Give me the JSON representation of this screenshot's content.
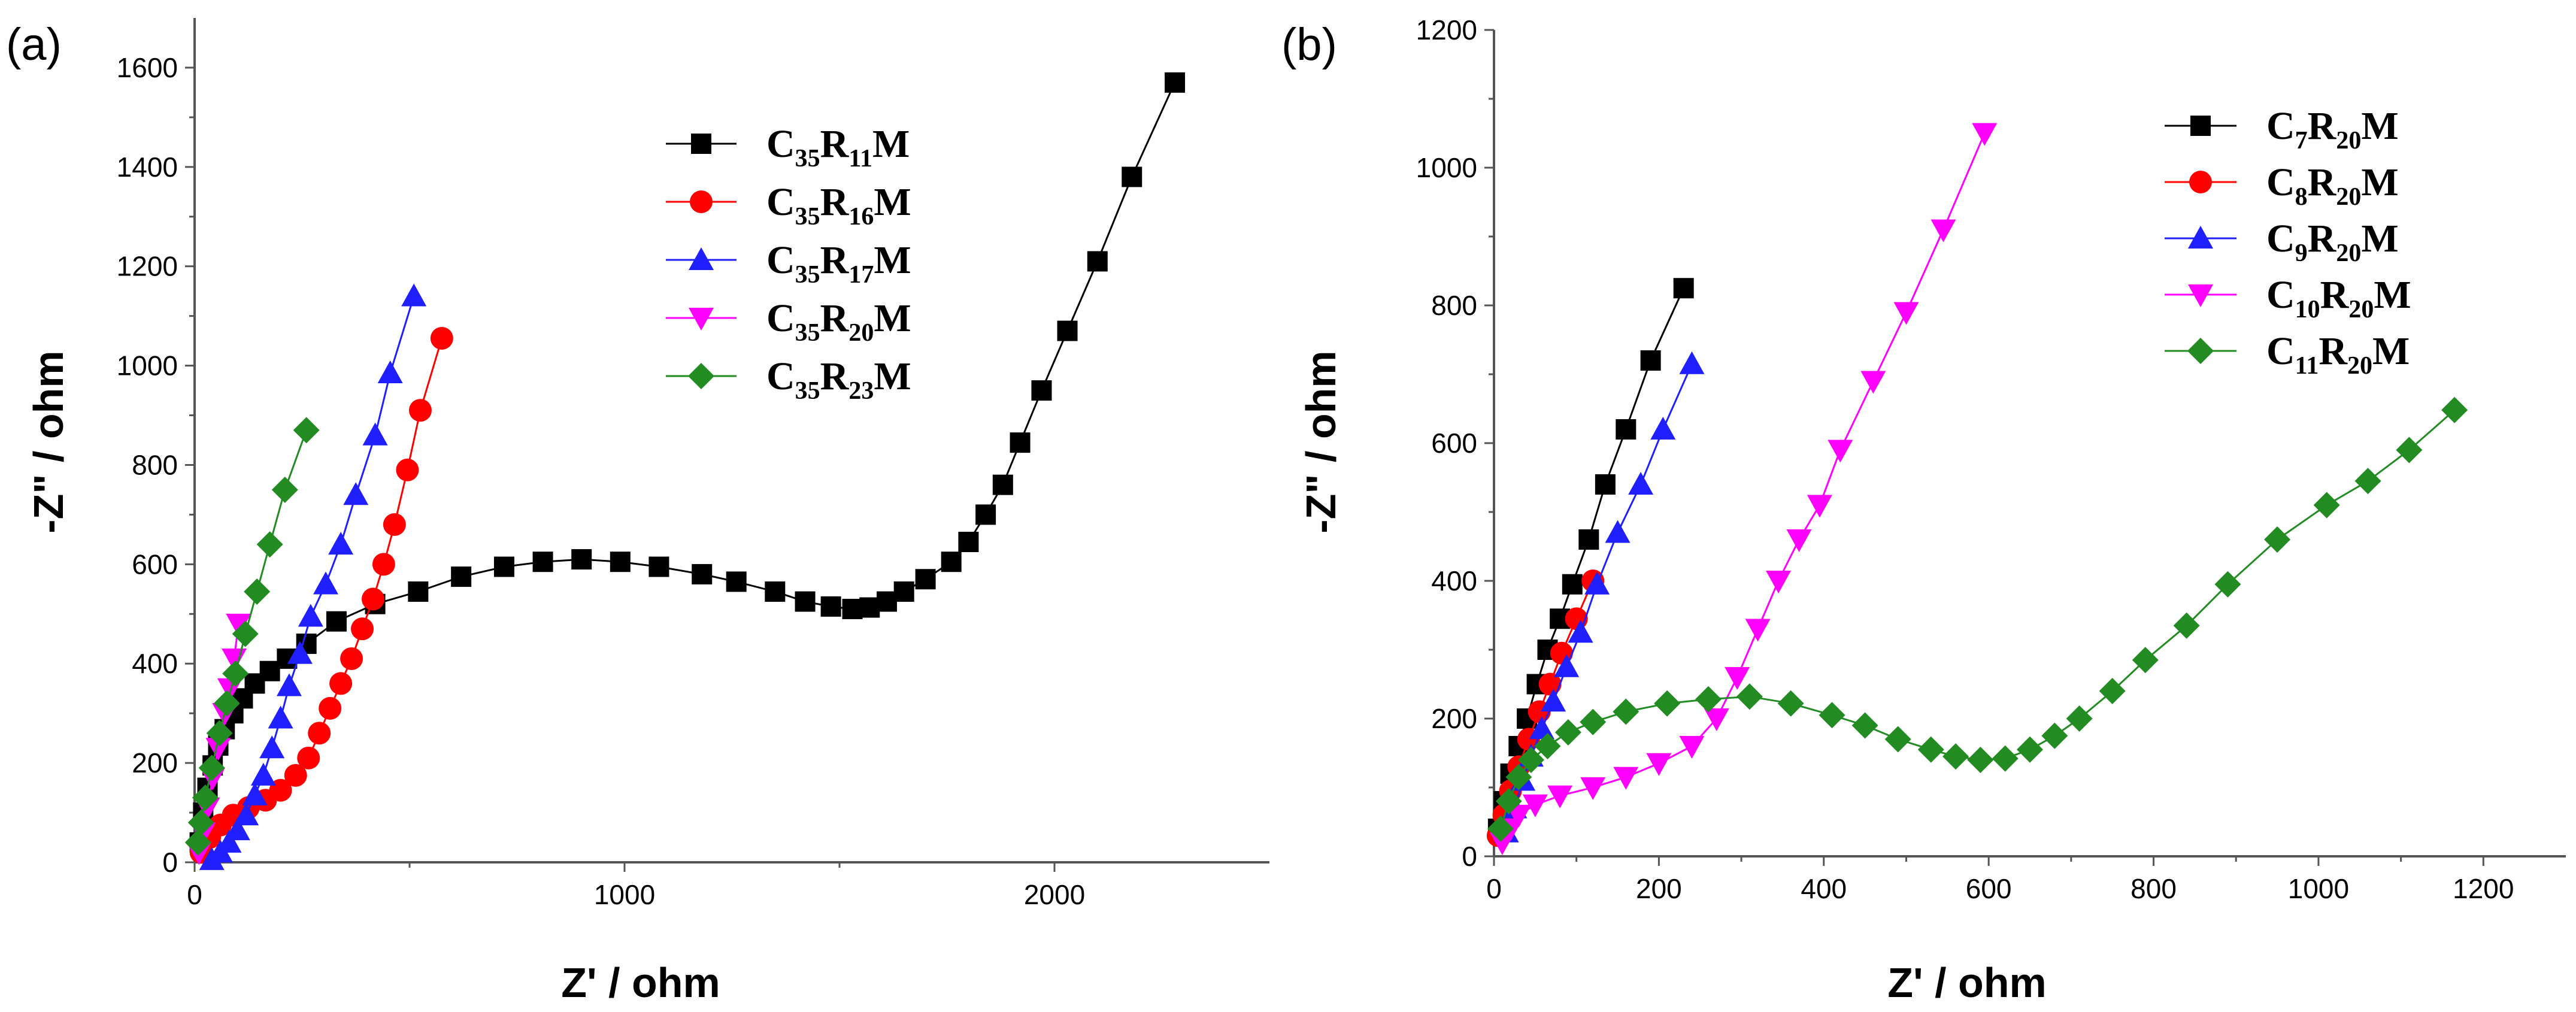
{
  "chart_data": [
    {
      "panel_label": "(a)",
      "type": "scatter",
      "xlabel": "Z' / ohm",
      "ylabel": "-Z\" / ohm",
      "xlim": [
        0,
        2500
      ],
      "ylim": [
        0,
        1700
      ],
      "xticks": [
        0,
        1000,
        2000
      ],
      "yticks": [
        0,
        200,
        400,
        600,
        800,
        1000,
        1200,
        1400,
        1600
      ],
      "legend_position": "top-right",
      "series": [
        {
          "name": "C35R11M",
          "legend": {
            "p1": "C",
            "s1": "35",
            "p2": "R",
            "s2": "11",
            "p3": "M"
          },
          "color": "#000000",
          "marker": "square",
          "points": [
            [
              12,
              40
            ],
            [
              20,
              100
            ],
            [
              30,
              150
            ],
            [
              42,
              195
            ],
            [
              55,
              235
            ],
            [
              70,
              268
            ],
            [
              90,
              300
            ],
            [
              112,
              330
            ],
            [
              140,
              360
            ],
            [
              175,
              385
            ],
            [
              215,
              410
            ],
            [
              260,
              440
            ],
            [
              330,
              485
            ],
            [
              420,
              520
            ],
            [
              520,
              545
            ],
            [
              620,
              575
            ],
            [
              720,
              595
            ],
            [
              810,
              605
            ],
            [
              900,
              610
            ],
            [
              990,
              605
            ],
            [
              1080,
              595
            ],
            [
              1180,
              580
            ],
            [
              1260,
              565
            ],
            [
              1350,
              545
            ],
            [
              1420,
              525
            ],
            [
              1480,
              515
            ],
            [
              1530,
              510
            ],
            [
              1570,
              513
            ],
            [
              1610,
              525
            ],
            [
              1650,
              545
            ],
            [
              1700,
              570
            ],
            [
              1760,
              605
            ],
            [
              1800,
              645
            ],
            [
              1840,
              700
            ],
            [
              1880,
              760
            ],
            [
              1920,
              845
            ],
            [
              1970,
              950
            ],
            [
              2030,
              1070
            ],
            [
              2100,
              1210
            ],
            [
              2180,
              1380
            ],
            [
              2280,
              1570
            ]
          ]
        },
        {
          "name": "C35R16M",
          "legend": {
            "p1": "C",
            "s1": "35",
            "p2": "R",
            "s2": "16",
            "p3": "M"
          },
          "color": "#ff0000",
          "marker": "circle",
          "points": [
            [
              15,
              20
            ],
            [
              35,
              50
            ],
            [
              60,
              75
            ],
            [
              90,
              95
            ],
            [
              125,
              110
            ],
            [
              165,
              125
            ],
            [
              200,
              145
            ],
            [
              235,
              175
            ],
            [
              265,
              210
            ],
            [
              290,
              260
            ],
            [
              315,
              310
            ],
            [
              340,
              360
            ],
            [
              365,
              410
            ],
            [
              390,
              470
            ],
            [
              415,
              530
            ],
            [
              440,
              600
            ],
            [
              465,
              680
            ],
            [
              495,
              790
            ],
            [
              525,
              910
            ],
            [
              575,
              1055
            ]
          ]
        },
        {
          "name": "C35R17M",
          "legend": {
            "p1": "C",
            "s1": "35",
            "p2": "R",
            "s2": "17",
            "p3": "M"
          },
          "color": "#1f1fff",
          "marker": "triangle-up",
          "points": [
            [
              40,
              5
            ],
            [
              60,
              20
            ],
            [
              80,
              40
            ],
            [
              100,
              65
            ],
            [
              120,
              95
            ],
            [
              140,
              135
            ],
            [
              160,
              175
            ],
            [
              180,
              230
            ],
            [
              200,
              290
            ],
            [
              220,
              355
            ],
            [
              245,
              420
            ],
            [
              270,
              495
            ],
            [
              305,
              560
            ],
            [
              340,
              640
            ],
            [
              375,
              740
            ],
            [
              420,
              860
            ],
            [
              455,
              985
            ],
            [
              510,
              1140
            ]
          ]
        },
        {
          "name": "C35R20M",
          "legend": {
            "p1": "C",
            "s1": "35",
            "p2": "R",
            "s2": "20",
            "p3": "M"
          },
          "color": "#ff00ff",
          "marker": "triangle-down",
          "points": [
            [
              10,
              20
            ],
            [
              20,
              60
            ],
            [
              30,
              110
            ],
            [
              42,
              170
            ],
            [
              55,
              230
            ],
            [
              70,
              300
            ],
            [
              82,
              350
            ],
            [
              92,
              410
            ],
            [
              102,
              480
            ]
          ]
        },
        {
          "name": "C35R23M",
          "legend": {
            "p1": "C",
            "s1": "35",
            "p2": "R",
            "s2": "23",
            "p3": "M"
          },
          "color": "#228b22",
          "marker": "diamond",
          "points": [
            [
              8,
              40
            ],
            [
              15,
              80
            ],
            [
              25,
              130
            ],
            [
              40,
              190
            ],
            [
              58,
              260
            ],
            [
              75,
              320
            ],
            [
              95,
              380
            ],
            [
              118,
              460
            ],
            [
              145,
              545
            ],
            [
              175,
              640
            ],
            [
              210,
              750
            ],
            [
              260,
              870
            ]
          ]
        }
      ]
    },
    {
      "panel_label": "(b)",
      "type": "scatter",
      "xlabel": "Z' / ohm",
      "ylabel": "-Z\" / ohm",
      "xlim": [
        0,
        1300
      ],
      "ylim": [
        0,
        1200
      ],
      "xticks": [
        0,
        200,
        400,
        600,
        800,
        1000,
        1200
      ],
      "yticks": [
        0,
        200,
        400,
        600,
        800,
        1000,
        1200
      ],
      "legend_position": "top-right",
      "series": [
        {
          "name": "C7R20M",
          "legend": {
            "p1": "C",
            "s1": "7",
            "p2": "R",
            "s2": "20",
            "p3": "M"
          },
          "color": "#000000",
          "marker": "square",
          "points": [
            [
              5,
              40
            ],
            [
              12,
              80
            ],
            [
              20,
              120
            ],
            [
              30,
              160
            ],
            [
              40,
              200
            ],
            [
              52,
              250
            ],
            [
              65,
              300
            ],
            [
              80,
              345
            ],
            [
              95,
              395
            ],
            [
              115,
              460
            ],
            [
              135,
              540
            ],
            [
              160,
              620
            ],
            [
              190,
              720
            ],
            [
              230,
              825
            ]
          ]
        },
        {
          "name": "C8R20M",
          "legend": {
            "p1": "C",
            "s1": "8",
            "p2": "R",
            "s2": "20",
            "p3": "M"
          },
          "color": "#ff0000",
          "marker": "circle",
          "points": [
            [
              5,
              30
            ],
            [
              12,
              60
            ],
            [
              20,
              95
            ],
            [
              30,
              130
            ],
            [
              42,
              170
            ],
            [
              55,
              210
            ],
            [
              68,
              250
            ],
            [
              82,
              295
            ],
            [
              100,
              345
            ],
            [
              120,
              400
            ]
          ]
        },
        {
          "name": "C9R20M",
          "legend": {
            "p1": "C",
            "s1": "9",
            "p2": "R",
            "s2": "20",
            "p3": "M"
          },
          "color": "#1f1fff",
          "marker": "triangle-up",
          "points": [
            [
              15,
              35
            ],
            [
              25,
              70
            ],
            [
              35,
              110
            ],
            [
              45,
              145
            ],
            [
              58,
              185
            ],
            [
              72,
              225
            ],
            [
              88,
              275
            ],
            [
              105,
              325
            ],
            [
              125,
              395
            ],
            [
              150,
              470
            ],
            [
              178,
              540
            ],
            [
              205,
              620
            ],
            [
              240,
              715
            ]
          ]
        },
        {
          "name": "C10R20M",
          "legend": {
            "p1": "C",
            "s1": "10",
            "p2": "R",
            "s2": "20",
            "p3": "M"
          },
          "color": "#ff00ff",
          "marker": "triangle-down",
          "points": [
            [
              10,
              20
            ],
            [
              20,
              40
            ],
            [
              30,
              60
            ],
            [
              50,
              75
            ],
            [
              80,
              88
            ],
            [
              120,
              100
            ],
            [
              160,
              115
            ],
            [
              200,
              135
            ],
            [
              240,
              160
            ],
            [
              270,
              200
            ],
            [
              295,
              260
            ],
            [
              320,
              330
            ],
            [
              345,
              400
            ],
            [
              370,
              460
            ],
            [
              395,
              510
            ],
            [
              420,
              590
            ],
            [
              460,
              690
            ],
            [
              500,
              790
            ],
            [
              545,
              910
            ],
            [
              595,
              1050
            ]
          ]
        },
        {
          "name": "C11R20M",
          "legend": {
            "p1": "C",
            "s1": "11",
            "p2": "R",
            "s2": "20",
            "p3": "M"
          },
          "color": "#228b22",
          "marker": "diamond",
          "points": [
            [
              8,
              40
            ],
            [
              18,
              80
            ],
            [
              30,
              115
            ],
            [
              45,
              140
            ],
            [
              65,
              160
            ],
            [
              90,
              180
            ],
            [
              120,
              195
            ],
            [
              160,
              210
            ],
            [
              210,
              222
            ],
            [
              260,
              228
            ],
            [
              310,
              232
            ],
            [
              360,
              222
            ],
            [
              410,
              205
            ],
            [
              450,
              190
            ],
            [
              490,
              170
            ],
            [
              530,
              155
            ],
            [
              560,
              145
            ],
            [
              590,
              140
            ],
            [
              620,
              142
            ],
            [
              650,
              155
            ],
            [
              680,
              175
            ],
            [
              710,
              200
            ],
            [
              750,
              240
            ],
            [
              790,
              285
            ],
            [
              840,
              335
            ],
            [
              890,
              395
            ],
            [
              950,
              460
            ],
            [
              1010,
              510
            ],
            [
              1060,
              545
            ],
            [
              1110,
              590
            ],
            [
              1165,
              648
            ]
          ]
        }
      ]
    }
  ]
}
